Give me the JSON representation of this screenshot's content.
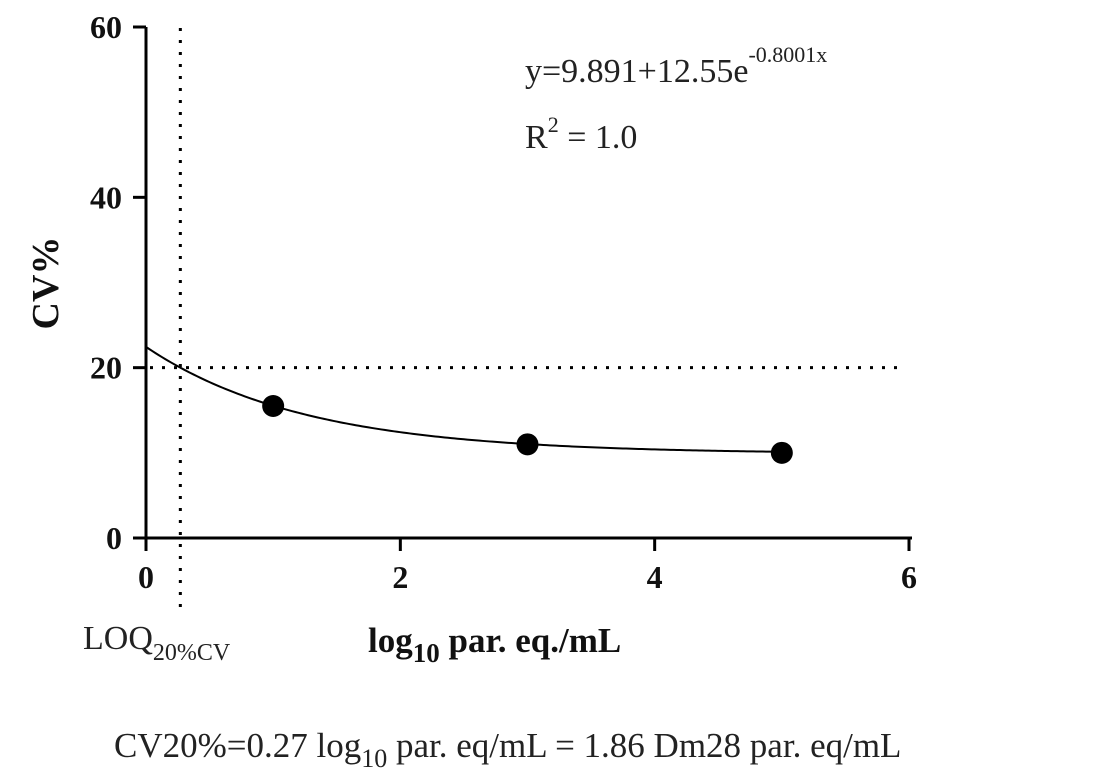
{
  "chart_data": {
    "type": "scatter",
    "xlabel": {
      "main": "log",
      "sub": "10",
      "rest": " par. eq./mL"
    },
    "ylabel": "CV%",
    "xlim": [
      0,
      6
    ],
    "ylim": [
      0,
      60
    ],
    "x_ticks": [
      "0",
      "2",
      "4",
      "6"
    ],
    "y_ticks": [
      "0",
      "20",
      "40",
      "60"
    ],
    "x_tick_values": [
      0,
      2,
      4,
      6
    ],
    "y_tick_values": [
      0,
      20,
      40,
      60
    ],
    "series": [
      {
        "x": [
          1,
          3,
          5
        ],
        "y": [
          15.5,
          11,
          10
        ]
      }
    ],
    "fit": {
      "a": 9.891,
      "b": 12.55,
      "c": -0.8001
    },
    "equation": {
      "base": "y=9.891+12.55e",
      "exponent": "-0.8001x"
    },
    "r_squared": {
      "base": "R",
      "sup": "2",
      "rest": " = 1.0"
    },
    "reference_lines": {
      "y": 20,
      "x": 0.27
    },
    "loq_label": {
      "main": "LOQ",
      "sub": "20%CV"
    },
    "footnote": {
      "part1": "CV20%=0.27 log",
      "sub": "10",
      "part2": " par. eq/mL = 1.86 Dm28 par. eq/mL"
    },
    "grid": false
  }
}
